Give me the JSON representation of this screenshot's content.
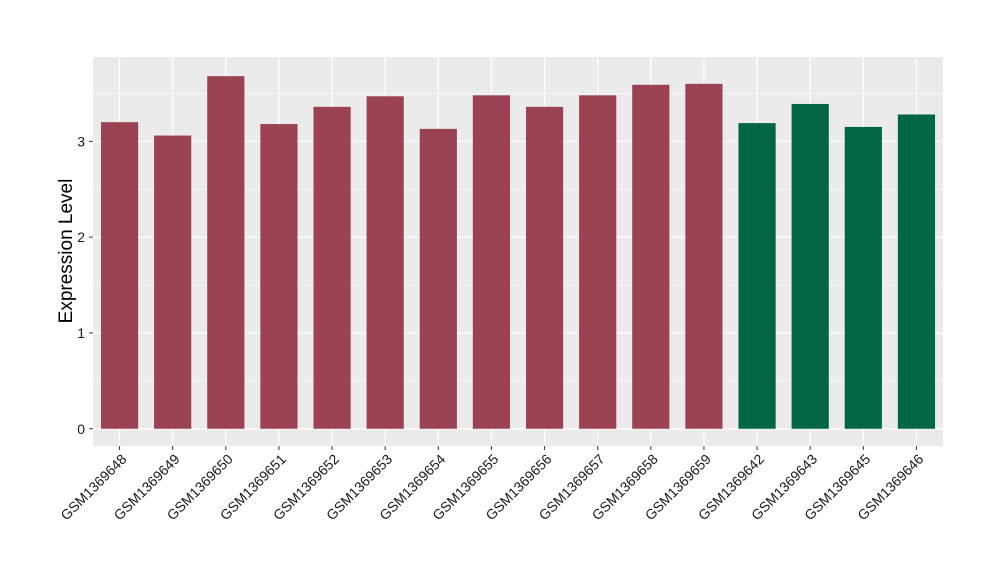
{
  "chart_data": {
    "type": "bar",
    "ylabel": "Expression Level",
    "xlabel": "",
    "ylim": [
      -0.18,
      3.88
    ],
    "yticks": [
      0,
      1,
      2,
      3
    ],
    "yticks_labels": [
      "0",
      "1",
      "2",
      "3"
    ],
    "grid": true,
    "legend": "none",
    "categories": [
      "GSM1369648",
      "GSM1369649",
      "GSM1369650",
      "GSM1369651",
      "GSM1369652",
      "GSM1369653",
      "GSM1369654",
      "GSM1369655",
      "GSM1369656",
      "GSM1369657",
      "GSM1369658",
      "GSM1369659",
      "GSM1369642",
      "GSM1369643",
      "GSM1369645",
      "GSM1369646"
    ],
    "values": [
      3.2,
      3.06,
      3.68,
      3.18,
      3.36,
      3.47,
      3.13,
      3.48,
      3.36,
      3.48,
      3.59,
      3.6,
      3.19,
      3.39,
      3.15,
      3.28
    ],
    "bar_colors": [
      "#9B4352",
      "#9B4352",
      "#9B4352",
      "#9B4352",
      "#9B4352",
      "#9B4352",
      "#9B4352",
      "#9B4352",
      "#9B4352",
      "#9B4352",
      "#9B4352",
      "#9B4352",
      "#016644",
      "#016644",
      "#016644",
      "#016644"
    ],
    "panel_background": "#EBEBEB",
    "grid_color": "#FFFFFF"
  }
}
